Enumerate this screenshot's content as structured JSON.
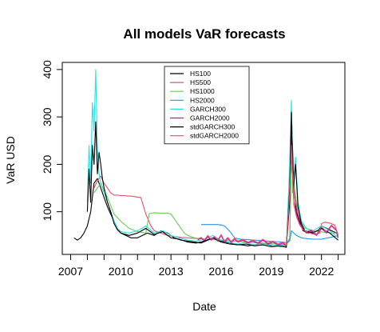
{
  "chart_data": {
    "type": "line",
    "title": "All models VaR forecasts",
    "xlabel": "Date",
    "ylabel": "VaR USD",
    "xlim": [
      2006.5,
      2023.4
    ],
    "ylim": [
      10,
      415
    ],
    "x_ticks": [
      2007,
      2010,
      2013,
      2016,
      2019,
      2022
    ],
    "y_ticks": [
      100,
      200,
      300,
      400
    ],
    "grid": false,
    "legend_position": "top-center",
    "series": [
      {
        "name": "HS100",
        "color": "#000000",
        "x": [
          2007.2,
          2007.4,
          2007.6,
          2007.8,
          2008.0,
          2008.2,
          2008.4,
          2008.6,
          2008.8,
          2009.0,
          2009.2,
          2009.4,
          2009.6,
          2009.8,
          2010.0,
          2010.3,
          2010.6,
          2011.0,
          2011.3,
          2011.6,
          2012.0,
          2012.4,
          2012.8,
          2013.2,
          2013.6,
          2014.0,
          2014.4,
          2014.8,
          2015.2,
          2015.6,
          2016.0,
          2016.4,
          2016.8,
          2017.2,
          2017.6,
          2018.0,
          2018.4,
          2018.8,
          2019.2,
          2019.6,
          2019.9,
          2020.1,
          2020.2,
          2020.35,
          2020.5,
          2020.7,
          2020.9,
          2021.2,
          2021.5,
          2021.8,
          2022.0,
          2022.3,
          2022.6,
          2022.9,
          2023.0
        ],
        "values": [
          45,
          40,
          45,
          55,
          70,
          100,
          160,
          170,
          150,
          130,
          110,
          95,
          80,
          65,
          55,
          50,
          45,
          45,
          50,
          55,
          50,
          60,
          55,
          45,
          40,
          38,
          36,
          34,
          40,
          45,
          38,
          35,
          32,
          30,
          28,
          30,
          32,
          30,
          28,
          27,
          28,
          120,
          310,
          150,
          100,
          80,
          60,
          55,
          58,
          60,
          70,
          65,
          60,
          55,
          48
        ]
      },
      {
        "name": "HS500",
        "color": "#df536b",
        "x": [
          2008.4,
          2008.6,
          2008.8,
          2009.0,
          2009.2,
          2009.4,
          2009.6,
          2009.8,
          2010.0,
          2010.2,
          2010.4,
          2010.6,
          2010.8,
          2011.0,
          2011.2,
          2011.5,
          2011.8,
          2012.0,
          2012.4,
          2012.8,
          2013.2,
          2013.6,
          2014.0,
          2014.4,
          2014.8,
          2015.2,
          2015.6,
          2016.0,
          2016.4,
          2016.8,
          2017.2,
          2017.6,
          2018.0,
          2018.4,
          2018.8,
          2019.2,
          2019.6,
          2019.9,
          2020.1,
          2020.2,
          2020.4,
          2020.6,
          2020.8,
          2021.0,
          2021.3,
          2021.6,
          2021.9,
          2022.0,
          2022.2,
          2022.5,
          2022.8,
          2023.0
        ],
        "values": [
          150,
          165,
          175,
          160,
          150,
          140,
          135,
          135,
          134,
          134,
          133,
          133,
          132,
          131,
          130,
          95,
          70,
          60,
          55,
          50,
          48,
          46,
          45,
          44,
          43,
          42,
          41,
          40,
          39,
          38,
          37,
          36,
          35,
          34,
          33,
          32,
          31,
          30,
          45,
          210,
          130,
          95,
          75,
          60,
          55,
          52,
          55,
          75,
          78,
          76,
          72,
          50
        ]
      },
      {
        "name": "HS1000",
        "color": "#61d04f",
        "x": [
          2008.4,
          2008.8,
          2009.2,
          2009.6,
          2010.0,
          2010.5,
          2011.0,
          2011.5,
          2011.7,
          2012.0,
          2012.4,
          2012.8,
          2013.0,
          2013.2,
          2013.4,
          2013.6,
          2013.8,
          2014.0,
          2014.4,
          2014.8,
          2015.2,
          2015.6,
          2016.0,
          2016.4,
          2016.8,
          2017.2,
          2017.6,
          2018.0,
          2018.4,
          2018.8,
          2019.2,
          2019.6,
          2019.9,
          2020.1,
          2020.2,
          2020.5,
          2020.8,
          2021.1,
          2021.5,
          2021.9,
          2022.3,
          2022.7,
          2023.0
        ],
        "values": [
          140,
          160,
          130,
          95,
          80,
          65,
          58,
          55,
          96,
          98,
          97,
          97,
          95,
          85,
          75,
          65,
          55,
          50,
          45,
          43,
          42,
          41,
          40,
          39,
          38,
          37,
          36,
          35,
          34,
          33,
          32,
          31,
          30,
          40,
          200,
          120,
          80,
          65,
          60,
          58,
          56,
          55,
          55
        ]
      },
      {
        "name": "HS2000",
        "color": "#2297e6",
        "x": [
          2014.8,
          2015.0,
          2015.4,
          2015.8,
          2016.0,
          2016.2,
          2016.4,
          2016.6,
          2016.8,
          2017.0,
          2017.2,
          2017.6,
          2018.0,
          2018.4,
          2018.8,
          2019.2,
          2019.6,
          2019.9,
          2020.1,
          2020.2,
          2020.5,
          2020.8,
          2021.2,
          2021.6,
          2022.0,
          2022.4,
          2022.8,
          2023.0
        ],
        "values": [
          73,
          73,
          73,
          73,
          72,
          70,
          63,
          55,
          45,
          43,
          42,
          41,
          40,
          39,
          38,
          37,
          36,
          35,
          38,
          60,
          50,
          45,
          43,
          42,
          42,
          45,
          48,
          50
        ]
      },
      {
        "name": "GARCH300",
        "color": "#28e2e5",
        "x": [
          2008.0,
          2008.1,
          2008.2,
          2008.3,
          2008.4,
          2008.5,
          2008.6,
          2008.7,
          2008.8,
          2009.0,
          2009.2,
          2009.4,
          2009.6,
          2009.8,
          2010.0,
          2010.5,
          2011.0,
          2011.5,
          2012.0,
          2012.5,
          2013.0,
          2013.5,
          2014.0,
          2014.5,
          2015.0,
          2015.5,
          2016.0,
          2016.5,
          2017.0,
          2017.5,
          2018.0,
          2018.5,
          2019.0,
          2019.5,
          2019.9,
          2020.1,
          2020.2,
          2020.3,
          2020.45,
          2020.6,
          2020.8,
          2021.0,
          2021.5,
          2022.0,
          2022.5,
          2023.0
        ],
        "values": [
          120,
          240,
          160,
          330,
          270,
          400,
          230,
          180,
          160,
          140,
          120,
          100,
          80,
          65,
          58,
          55,
          60,
          70,
          55,
          60,
          50,
          45,
          40,
          38,
          42,
          50,
          40,
          35,
          32,
          35,
          30,
          32,
          28,
          30,
          27,
          200,
          335,
          150,
          215,
          120,
          80,
          65,
          60,
          70,
          60,
          45
        ]
      },
      {
        "name": "GARCH2000",
        "color": "#cd0bbc",
        "x": [
          2014.6,
          2014.8,
          2015.0,
          2015.2,
          2015.4,
          2015.6,
          2015.8,
          2016.0,
          2016.2,
          2016.4,
          2016.6,
          2016.8,
          2017.0,
          2017.3,
          2017.6,
          2017.9,
          2018.2,
          2018.5,
          2018.8,
          2019.1,
          2019.4,
          2019.7,
          2019.9,
          2020.1,
          2020.2,
          2020.35,
          2020.5,
          2020.7,
          2020.9,
          2021.1,
          2021.4,
          2021.7,
          2022.0,
          2022.3,
          2022.6,
          2022.9,
          2023.0
        ],
        "values": [
          40,
          45,
          38,
          48,
          40,
          46,
          38,
          50,
          36,
          44,
          35,
          42,
          36,
          40,
          34,
          38,
          33,
          40,
          32,
          36,
          30,
          34,
          27,
          150,
          250,
          120,
          95,
          75,
          65,
          55,
          60,
          50,
          65,
          55,
          70,
          60,
          45
        ]
      },
      {
        "name": "stdGARCH300",
        "color": "#000000",
        "x": [
          2008.0,
          2008.1,
          2008.2,
          2008.3,
          2008.4,
          2008.5,
          2008.6,
          2008.7,
          2008.8,
          2008.9,
          2009.0,
          2009.2,
          2009.4,
          2009.6,
          2009.8,
          2010.0,
          2010.5,
          2011.0,
          2011.5,
          2012.0,
          2012.5,
          2013.0,
          2013.5,
          2014.0,
          2014.5,
          2015.0,
          2015.5,
          2016.0,
          2016.5,
          2017.0,
          2017.5,
          2018.0,
          2018.5,
          2019.0,
          2019.5,
          2019.9,
          2020.1,
          2020.2,
          2020.3,
          2020.45,
          2020.6,
          2020.8,
          2021.0,
          2021.5,
          2022.0,
          2022.5,
          2023.0
        ],
        "values": [
          100,
          190,
          120,
          240,
          200,
          290,
          180,
          225,
          200,
          170,
          150,
          120,
          100,
          75,
          62,
          55,
          50,
          55,
          65,
          52,
          58,
          45,
          42,
          36,
          34,
          38,
          45,
          36,
          32,
          30,
          32,
          28,
          30,
          26,
          28,
          25,
          150,
          310,
          140,
          200,
          110,
          75,
          60,
          55,
          65,
          55,
          40
        ]
      },
      {
        "name": "stdGARCH2000",
        "color": "#df536b",
        "x": [
          2014.6,
          2014.8,
          2015.0,
          2015.2,
          2015.4,
          2015.6,
          2015.8,
          2016.0,
          2016.2,
          2016.4,
          2016.6,
          2016.8,
          2017.0,
          2017.3,
          2017.6,
          2017.9,
          2018.2,
          2018.5,
          2018.8,
          2019.1,
          2019.4,
          2019.7,
          2019.9,
          2020.1,
          2020.2,
          2020.35,
          2020.5,
          2020.7,
          2020.9,
          2021.1,
          2021.4,
          2021.7,
          2022.0,
          2022.3,
          2022.6,
          2022.9,
          2023.0
        ],
        "values": [
          42,
          46,
          40,
          50,
          42,
          48,
          40,
          52,
          38,
          46,
          37,
          44,
          38,
          42,
          36,
          40,
          35,
          42,
          34,
          38,
          32,
          36,
          29,
          140,
          240,
          115,
          90,
          72,
          62,
          58,
          62,
          52,
          68,
          58,
          72,
          62,
          48
        ]
      }
    ]
  }
}
